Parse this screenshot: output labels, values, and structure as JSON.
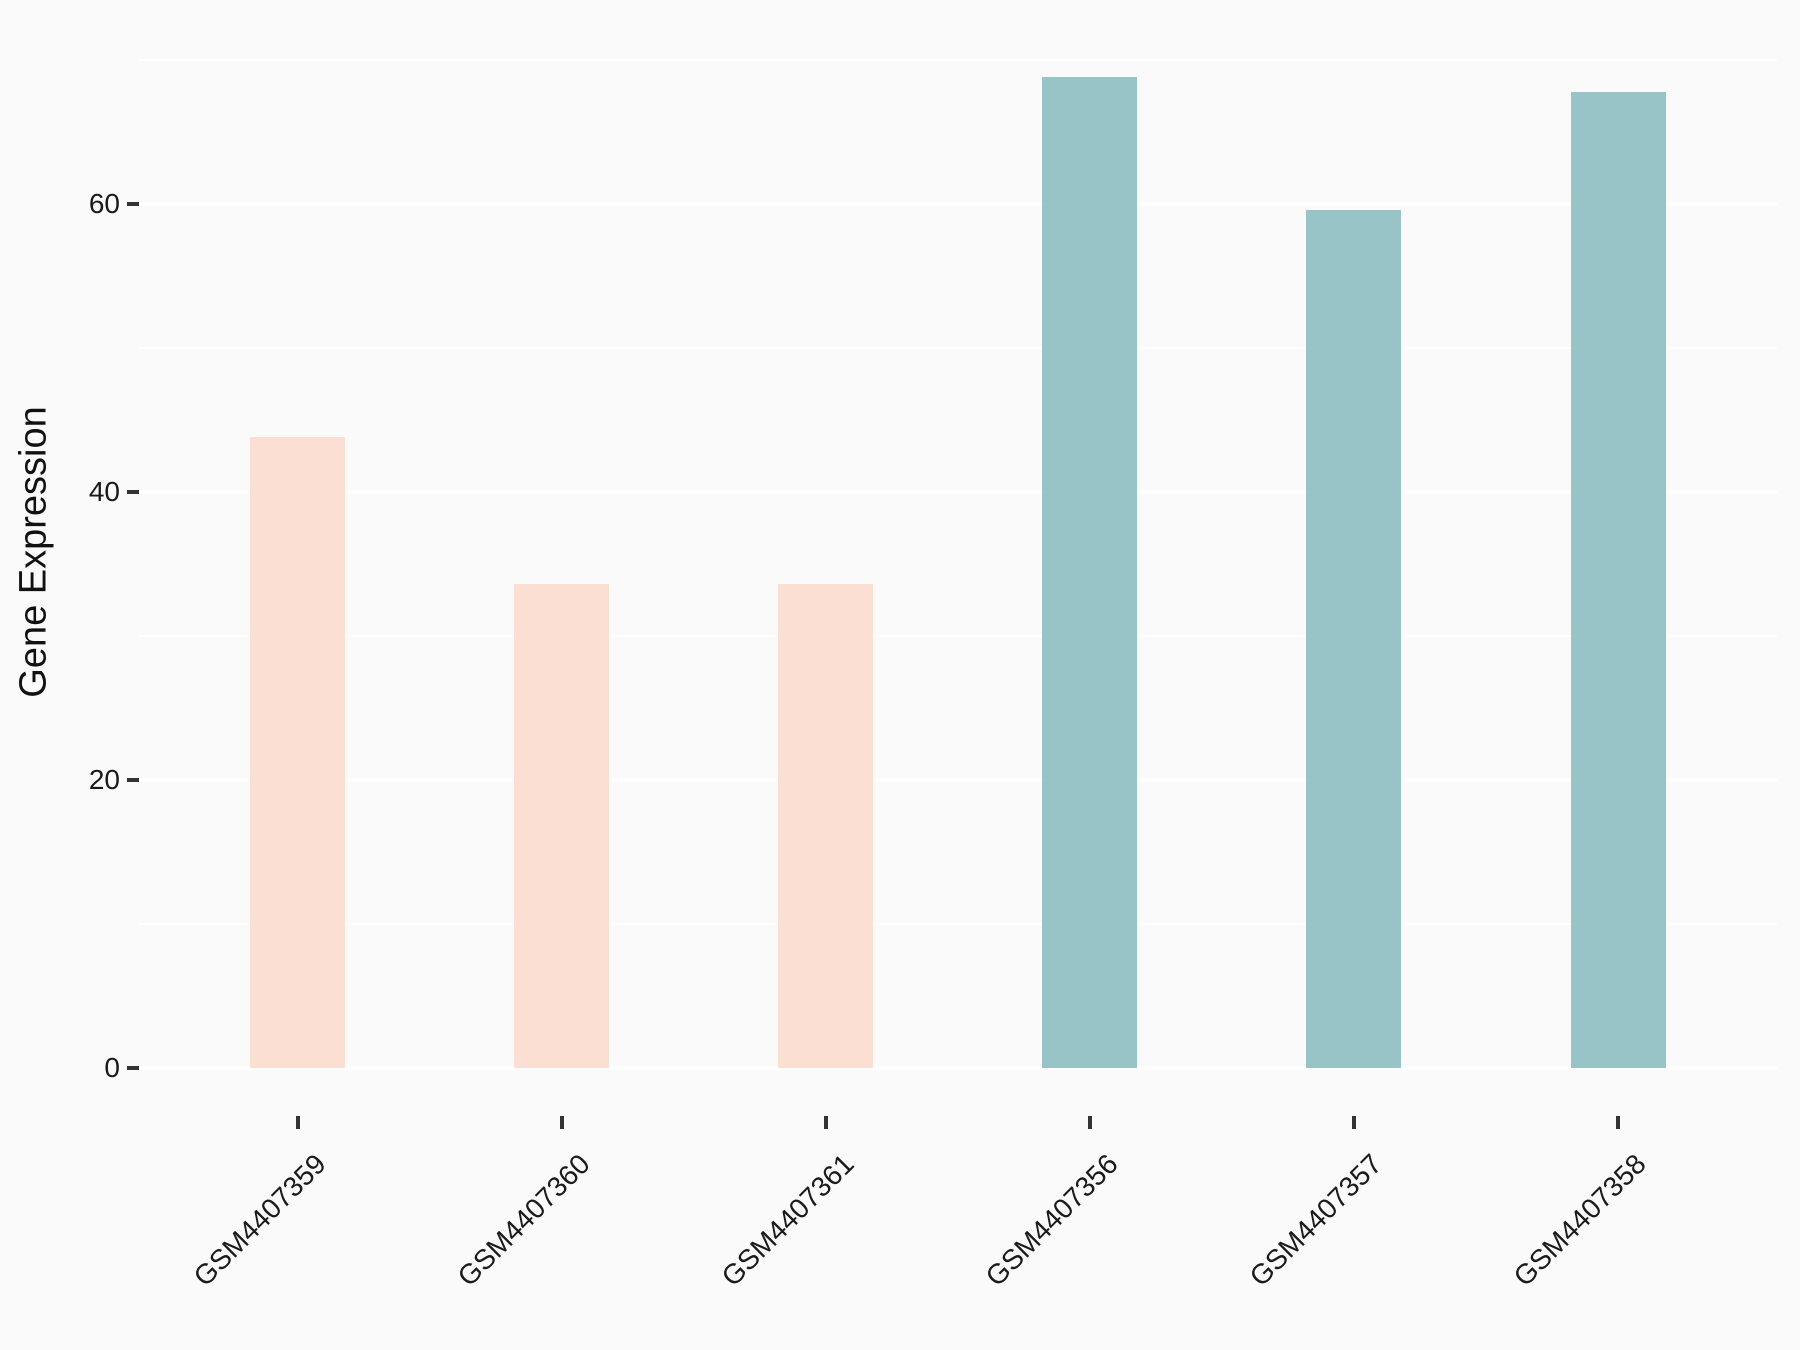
{
  "chart_data": {
    "type": "bar",
    "title": "",
    "ylabel": "Gene Expression",
    "xlabel": "",
    "categories": [
      "GSM4407359",
      "GSM4407360",
      "GSM4407361",
      "GSM4407356",
      "GSM4407357",
      "GSM4407358"
    ],
    "values": [
      43.8,
      33.6,
      33.6,
      68.8,
      59.6,
      67.8
    ],
    "bar_colors": [
      "#fcdfd3",
      "#fcdfd3",
      "#fcdfd3",
      "#98c3c7",
      "#98c3c7",
      "#98c3c7"
    ],
    "groups": [
      {
        "name": "pink-group",
        "color": "#fcdfd3",
        "categories": [
          "GSM4407359",
          "GSM4407360",
          "GSM4407361"
        ]
      },
      {
        "name": "teal-group",
        "color": "#98c3c7",
        "categories": [
          "GSM4407356",
          "GSM4407357",
          "GSM4407358"
        ]
      }
    ],
    "yticks": [
      0,
      20,
      40,
      60
    ],
    "yticks_minor": [
      10,
      30,
      50,
      70
    ],
    "ylim": [
      -3.3,
      72.5
    ],
    "grid": true,
    "legend": "none",
    "x_label_rotation_deg": 45,
    "colors": {
      "background": "#fafafa",
      "gridline": "#ffffff",
      "tick_mark": "#333333",
      "axis_text": "#1a1a1a"
    }
  }
}
